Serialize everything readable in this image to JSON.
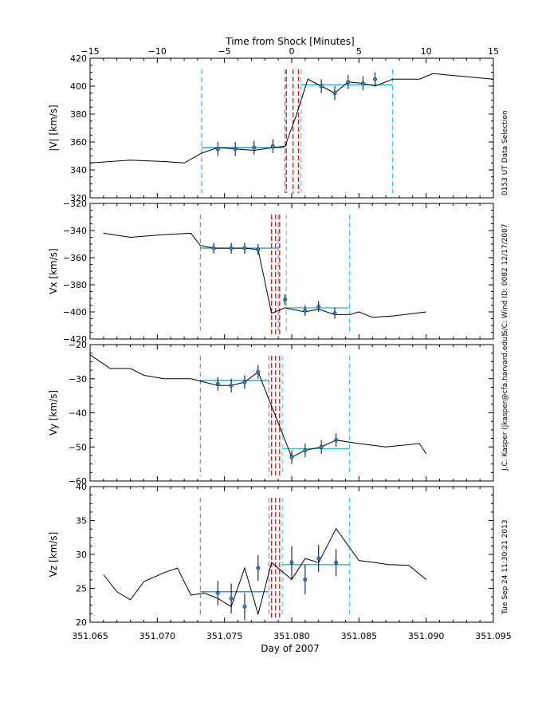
{
  "chart_data": {
    "type": "line",
    "x_label": "Day of 2007",
    "x_range": [
      351.065,
      351.095
    ],
    "x_ticks": [
      "351.065",
      "351.070",
      "351.075",
      "351.080",
      "351.085",
      "351.090",
      "351.095"
    ],
    "top_axis": {
      "label": "Time from Shock [Minutes]",
      "range": [
        -15,
        15
      ],
      "ticks": [
        "−15",
        "−10",
        "−5",
        "0",
        "5",
        "10",
        "15"
      ]
    },
    "side_notes": [
      "0153 UT Data Selection",
      "S/C: Wind ID: 0082 12/17/2007",
      "J.C. Kasper (jkasper@cfa.harvard.edu)",
      "Tue Sep 24 11:30:21 2013"
    ],
    "panels": [
      {
        "ylabel": "|V| [km/s]",
        "ylim": [
          320,
          420
        ],
        "yticks": [
          "320",
          "340",
          "360",
          "380",
          "400",
          "420"
        ],
        "series_x": [
          351.065,
          351.068,
          351.0705,
          351.072,
          351.0733,
          351.0745,
          351.0758,
          351.0772,
          351.0786,
          351.0795,
          351.0803,
          351.0812,
          351.0822,
          351.0832,
          351.0842,
          351.0853,
          351.0862,
          351.0875,
          351.0895,
          351.0905,
          351.095
        ],
        "series_y": [
          345,
          347,
          346,
          345,
          352,
          356,
          355,
          354,
          356,
          357,
          378,
          405,
          400,
          395,
          403,
          402,
          400,
          405,
          405,
          409,
          405
        ],
        "points_x": [
          351.0745,
          351.0758,
          351.0772,
          351.0786,
          351.0822,
          351.0832,
          351.0842,
          351.0853,
          351.0862
        ],
        "points_y": [
          355,
          355,
          356,
          357,
          400,
          395,
          403,
          402,
          405
        ],
        "errors": [
          5,
          5,
          5,
          5,
          5,
          5,
          5,
          5,
          5
        ],
        "upstream_level": 356,
        "downstream_level": 401,
        "upstream_window": [
          351.0733,
          351.0795
        ],
        "downstream_window": [
          351.0807,
          351.0875
        ],
        "shock_lines": [
          351.0796,
          351.0801,
          351.0805
        ]
      },
      {
        "ylabel": "Vx [km/s]",
        "ylim": [
          -420,
          -320
        ],
        "yticks": [
          "−420",
          "−400",
          "−380",
          "−360",
          "−340",
          "−320"
        ],
        "series_x": [
          351.066,
          351.068,
          351.0705,
          351.0725,
          351.0732,
          351.0742,
          351.0755,
          351.0765,
          351.0775,
          351.0785,
          351.0795,
          351.081,
          351.082,
          351.0832,
          351.0843,
          351.085,
          351.086,
          351.0875,
          351.09
        ],
        "series_y": [
          -342,
          -345,
          -343,
          -342,
          -351,
          -353,
          -353,
          -353,
          -354,
          -401,
          -397,
          -400,
          -398,
          -402,
          -402,
          -400,
          -404,
          -403,
          -400
        ],
        "points_x": [
          351.0742,
          351.0755,
          351.0765,
          351.0775,
          351.0795,
          351.081,
          351.082,
          351.0832
        ],
        "points_y": [
          -353,
          -353,
          -353,
          -354,
          -391,
          -399,
          -396,
          -401
        ],
        "errors": [
          4,
          4,
          4,
          4,
          4,
          4,
          4,
          4
        ],
        "upstream_level": -353,
        "downstream_level": -397,
        "upstream_window": [
          351.0732,
          351.079
        ],
        "downstream_window": [
          351.0796,
          351.0843
        ],
        "shock_lines": [
          351.0785,
          351.0788,
          351.0791
        ]
      },
      {
        "ylabel": "Vy [km/s]",
        "ylim": [
          -60,
          -20
        ],
        "yticks": [
          "−60",
          "−50",
          "−40",
          "−30",
          "−20"
        ],
        "series_x": [
          351.065,
          351.0665,
          351.068,
          351.069,
          351.0705,
          351.0715,
          351.0725,
          351.0735,
          351.0745,
          351.0755,
          351.0765,
          351.0775,
          351.08,
          351.081,
          351.0822,
          351.0833,
          351.085,
          351.087,
          351.0895,
          351.09
        ],
        "series_y": [
          -23,
          -27,
          -27,
          -29,
          -30,
          -30,
          -30,
          -31,
          -32,
          -32,
          -31,
          -28,
          -53,
          -51,
          -50,
          -48,
          -49,
          -50,
          -49,
          -52
        ],
        "points_x": [
          351.0745,
          351.0755,
          351.0765,
          351.0775,
          351.08,
          351.081,
          351.0822,
          351.0833
        ],
        "points_y": [
          -31.5,
          -32,
          -31,
          -28,
          -53,
          -51,
          -50,
          -48
        ],
        "errors": [
          2,
          2,
          2,
          2,
          2,
          2,
          2,
          2
        ],
        "upstream_level": -30.5,
        "downstream_level": -50.5,
        "upstream_window": [
          351.0732,
          351.0783
        ],
        "downstream_window": [
          351.0793,
          351.0843
        ],
        "shock_lines": [
          351.0785,
          351.0788,
          351.0791
        ]
      },
      {
        "ylabel": "Vz [km/s]",
        "ylim": [
          20,
          40
        ],
        "yticks": [
          "20",
          "25",
          "30",
          "35",
          "40"
        ],
        "series_x": [
          351.066,
          351.067,
          351.068,
          351.069,
          351.0705,
          351.0715,
          351.0725,
          351.0735,
          351.0745,
          351.0755,
          351.0765,
          351.0775,
          351.0785,
          351.08,
          351.081,
          351.082,
          351.0833,
          351.085,
          351.0862,
          351.0872,
          351.0887,
          351.09
        ],
        "series_y": [
          27,
          24.5,
          23.3,
          26,
          27.3,
          28,
          24,
          24.3,
          23.5,
          22.3,
          28,
          21.2,
          28.8,
          26.3,
          29.4,
          28.8,
          33.8,
          29.1,
          28.8,
          28.5,
          28.4,
          26.3
        ],
        "points_x": [
          351.0745,
          351.0755,
          351.0765,
          351.0775,
          351.08,
          351.081,
          351.082,
          351.0833
        ],
        "points_y": [
          24.3,
          23.5,
          22.3,
          28,
          28.8,
          26.3,
          29.4,
          28.8
        ],
        "errors": [
          1.8,
          2.2,
          2,
          1.9,
          2.4,
          2.2,
          2,
          2
        ],
        "upstream_level": 24.5,
        "downstream_level": 28.5,
        "upstream_window": [
          351.0732,
          351.0783
        ],
        "downstream_window": [
          351.0793,
          351.0843
        ],
        "shock_lines": [
          351.0785,
          351.0788,
          351.0791
        ]
      }
    ],
    "colors": {
      "line": "#000000",
      "upstream_marker": "#1b5fe0",
      "upstream_fit": "#1ba3e0",
      "downstream_fit": "#23c8d6",
      "upstream_window": "#2a8be8",
      "downstream_window": "#28d2d2",
      "shock": "#d21414",
      "point": "#1e8ad6"
    }
  }
}
